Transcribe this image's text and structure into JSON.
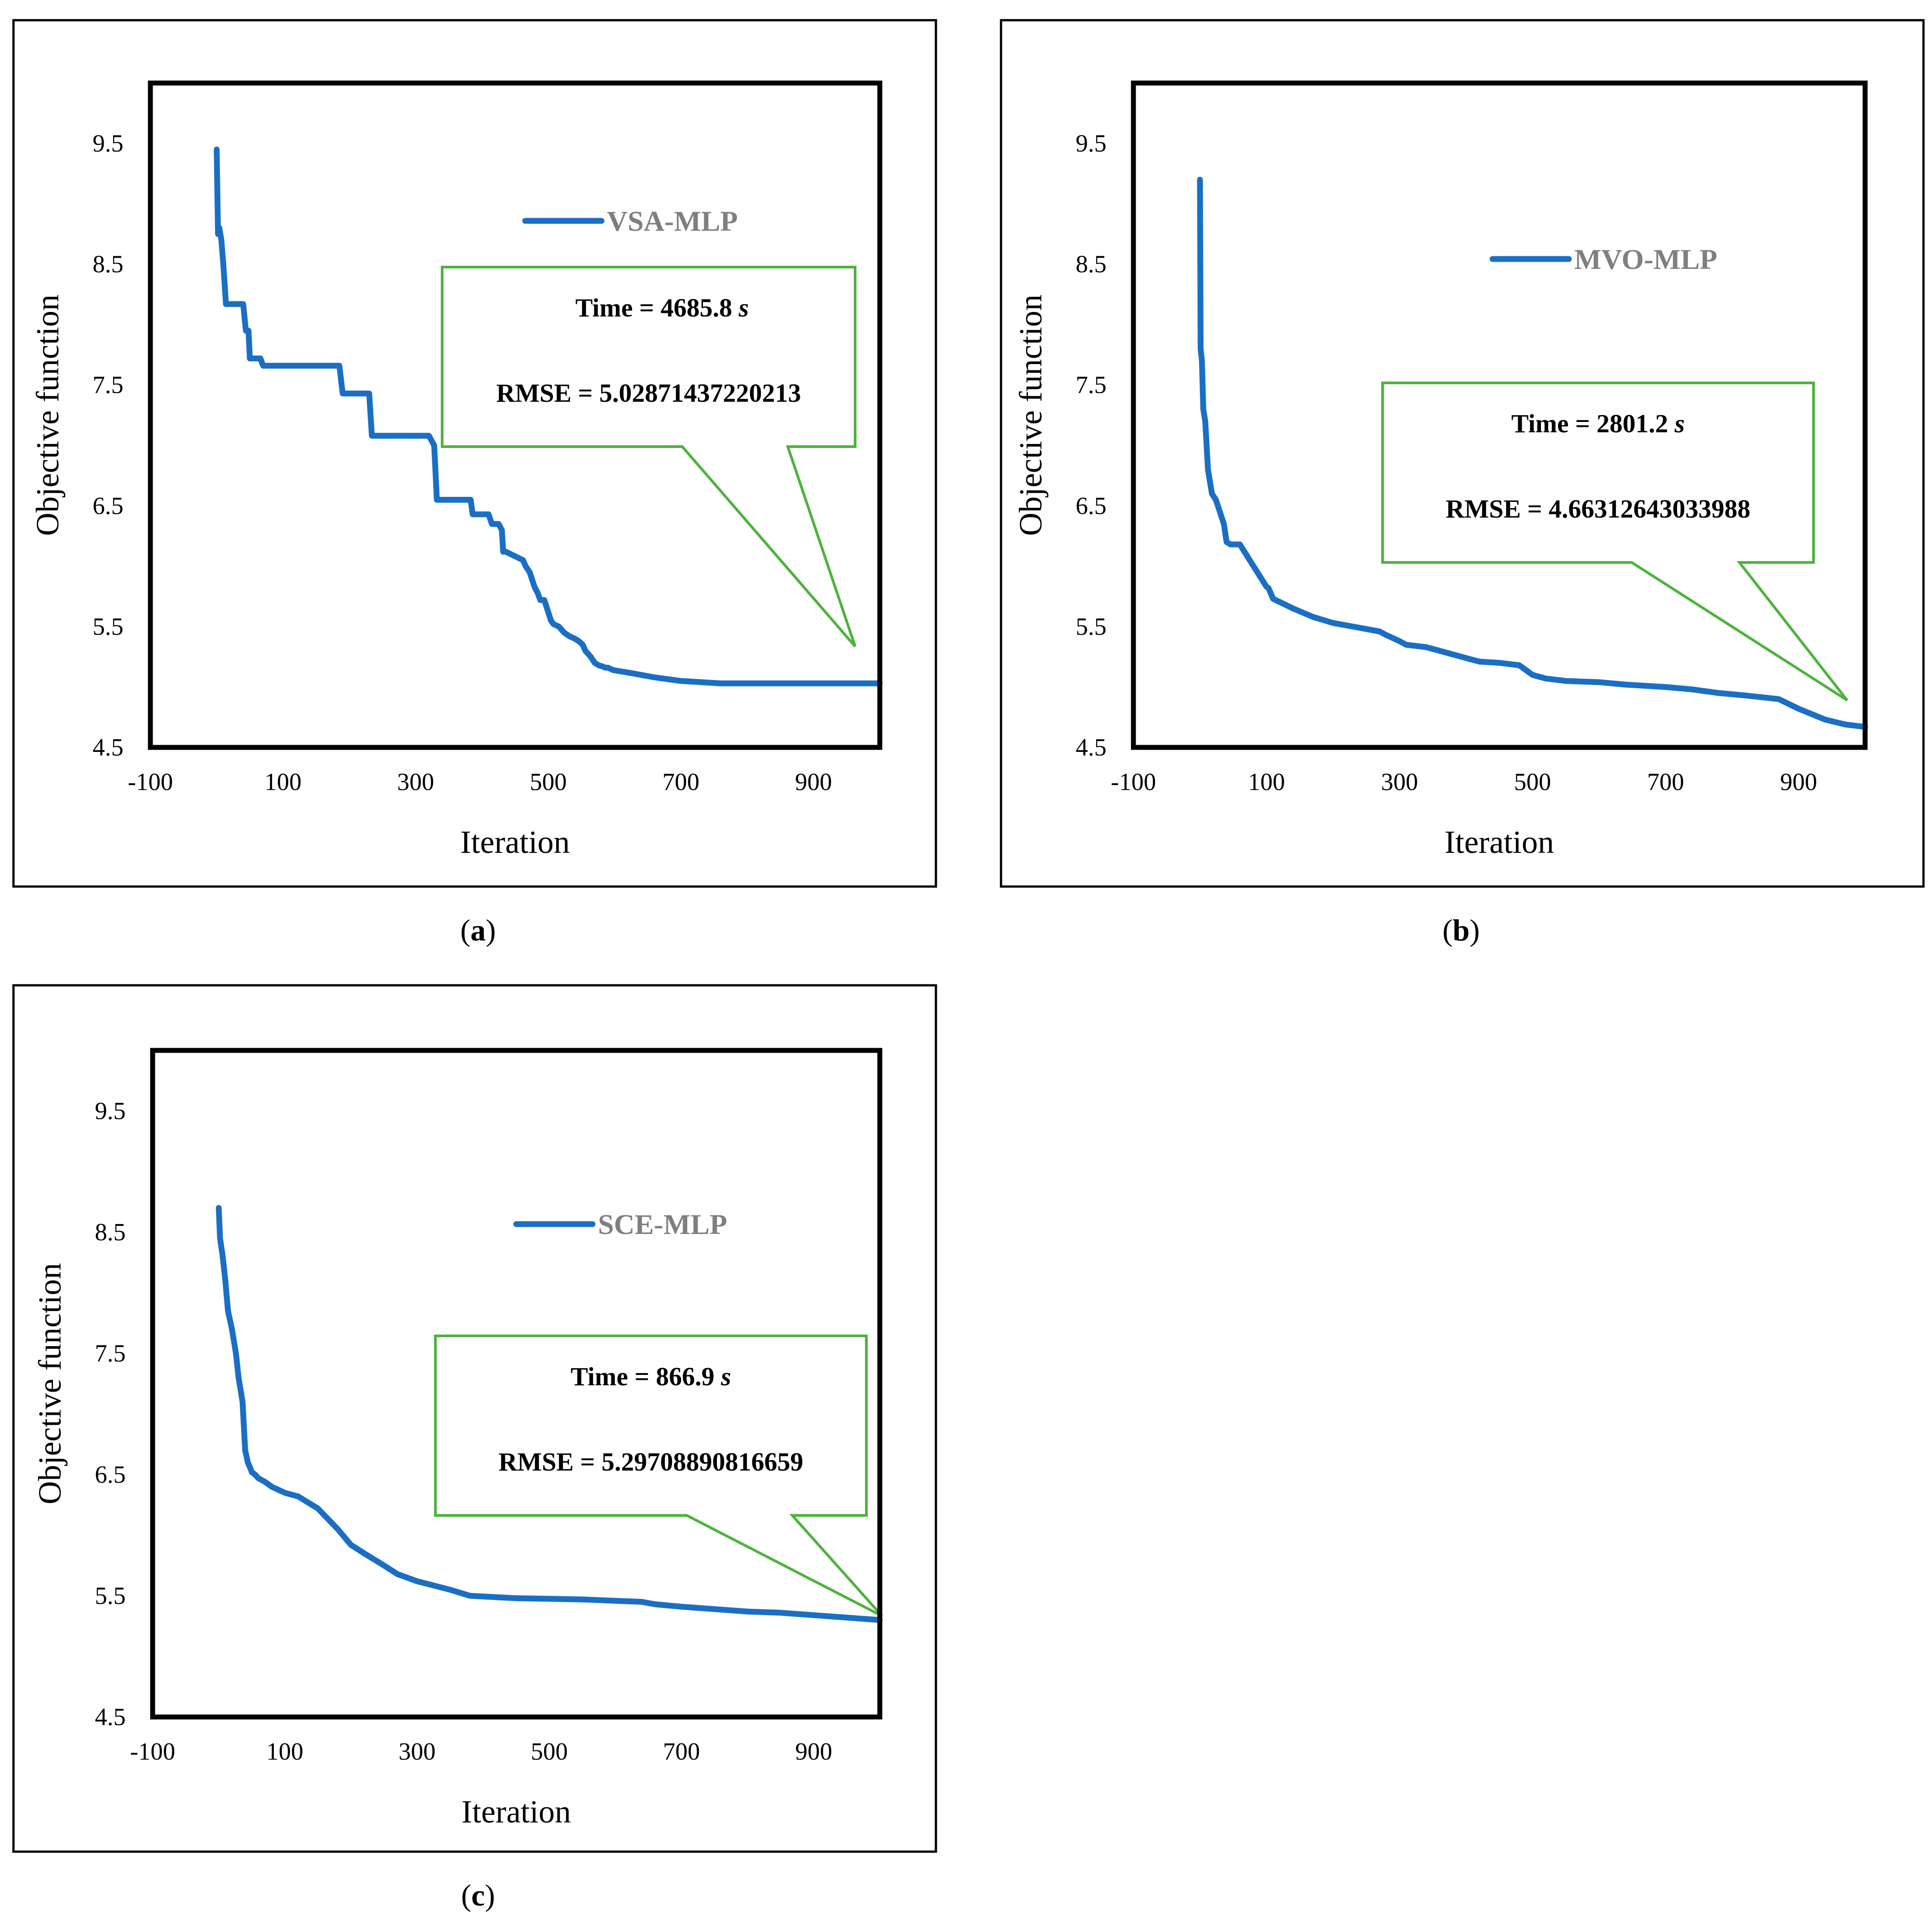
{
  "chart_data": [
    {
      "type": "line",
      "panel_label": "a",
      "series": [
        {
          "name": "VSA-MLP",
          "x": [
            0,
            2,
            4,
            7,
            10,
            14,
            40,
            44,
            48,
            50,
            66,
            70,
            185,
            190,
            230,
            234,
            320,
            328,
            332,
            336,
            383,
            386,
            410,
            415,
            425,
            430,
            432,
            436,
            462,
            466,
            472,
            478,
            480,
            484,
            488,
            494,
            500,
            504,
            508,
            516,
            524,
            532,
            540,
            546,
            552,
            556,
            564,
            570,
            576,
            582,
            586,
            590,
            594,
            598,
            620,
            660,
            700,
            760,
            1000
          ],
          "values": [
            9.45,
            8.75,
            8.8,
            8.7,
            8.5,
            8.17,
            8.17,
            7.95,
            7.95,
            7.72,
            7.72,
            7.66,
            7.66,
            7.43,
            7.43,
            7.08,
            7.08,
            7.0,
            6.55,
            6.55,
            6.55,
            6.43,
            6.43,
            6.35,
            6.35,
            6.3,
            6.12,
            6.12,
            6.05,
            6.0,
            5.95,
            5.85,
            5.82,
            5.78,
            5.72,
            5.72,
            5.62,
            5.55,
            5.52,
            5.5,
            5.45,
            5.42,
            5.4,
            5.38,
            5.35,
            5.3,
            5.25,
            5.2,
            5.18,
            5.17,
            5.16,
            5.16,
            5.15,
            5.14,
            5.12,
            5.08,
            5.05,
            5.03,
            5.03
          ]
        }
      ],
      "annotation": {
        "time_label": "Time = 4685.8",
        "time_unit": "s",
        "rmse_label": "RMSE = 5.02871437220213"
      },
      "xlabel": "Iteration",
      "ylabel": "Objective function",
      "xlim": [
        -100,
        1000
      ],
      "ylim": [
        4.5,
        10
      ],
      "x_ticks": [
        "-100",
        "100",
        "300",
        "500",
        "700",
        "900"
      ],
      "y_ticks": [
        "4.5",
        "5.5",
        "6.5",
        "7.5",
        "8.5",
        "9.5"
      ]
    },
    {
      "type": "line",
      "panel_label": "b",
      "series": [
        {
          "name": "MVO-MLP",
          "x": [
            0,
            1,
            3,
            5,
            8,
            12,
            18,
            24,
            30,
            36,
            40,
            46,
            50,
            60,
            100,
            103,
            110,
            140,
            170,
            200,
            230,
            270,
            280,
            300,
            310,
            340,
            360,
            380,
            400,
            420,
            450,
            480,
            500,
            520,
            550,
            600,
            640,
            700,
            740,
            780,
            820,
            870,
            900,
            940,
            970,
            1000
          ],
          "values": [
            9.2,
            7.8,
            7.7,
            7.3,
            7.2,
            6.8,
            6.6,
            6.55,
            6.45,
            6.35,
            6.2,
            6.18,
            6.18,
            6.18,
            5.83,
            5.82,
            5.73,
            5.65,
            5.58,
            5.53,
            5.5,
            5.46,
            5.43,
            5.38,
            5.35,
            5.33,
            5.3,
            5.27,
            5.24,
            5.21,
            5.2,
            5.18,
            5.1,
            5.07,
            5.05,
            5.04,
            5.02,
            5.0,
            4.98,
            4.95,
            4.93,
            4.9,
            4.82,
            4.73,
            4.69,
            4.67
          ]
        }
      ],
      "annotation": {
        "time_label": "Time = 2801.2",
        "time_unit": "s",
        "rmse_label": "RMSE = 4.66312643033988"
      },
      "xlabel": "Iteration",
      "ylabel": "Objective function",
      "xlim": [
        -100,
        1000
      ],
      "ylim": [
        4.5,
        10
      ],
      "x_ticks": [
        "-100",
        "100",
        "300",
        "500",
        "700",
        "900"
      ],
      "y_ticks": [
        "4.5",
        "5.5",
        "6.5",
        "7.5",
        "8.5",
        "9.5"
      ]
    },
    {
      "type": "line",
      "panel_label": "c",
      "series": [
        {
          "name": "SCE-MLP",
          "x": [
            0,
            2,
            6,
            10,
            14,
            20,
            26,
            30,
            36,
            40,
            44,
            48,
            50,
            55,
            60,
            70,
            80,
            100,
            120,
            150,
            180,
            200,
            220,
            250,
            270,
            300,
            350,
            380,
            450,
            550,
            640,
            660,
            700,
            800,
            850,
            900,
            1000
          ],
          "values": [
            8.7,
            8.45,
            8.3,
            8.1,
            7.85,
            7.7,
            7.5,
            7.3,
            7.1,
            6.7,
            6.6,
            6.55,
            6.52,
            6.5,
            6.47,
            6.44,
            6.4,
            6.35,
            6.32,
            6.22,
            6.05,
            5.92,
            5.85,
            5.75,
            5.68,
            5.62,
            5.55,
            5.5,
            5.48,
            5.47,
            5.45,
            5.43,
            5.41,
            5.37,
            5.36,
            5.34,
            5.3
          ]
        }
      ],
      "annotation": {
        "time_label": "Time = 866.9",
        "time_unit": "s",
        "rmse_label": "RMSE = 5.29708890816659"
      },
      "xlabel": "Iteration",
      "ylabel": "Objective function",
      "xlim": [
        -100,
        1000
      ],
      "ylim": [
        4.5,
        10
      ],
      "x_ticks": [
        "-100",
        "100",
        "300",
        "500",
        "700",
        "900"
      ],
      "y_ticks": [
        "4.5",
        "5.5",
        "6.5",
        "7.5",
        "8.5",
        "9.5"
      ]
    }
  ],
  "colors": {
    "series": "#1a6fc4",
    "callout_border": "#4db33d",
    "legend_text": "#7f7f7f",
    "frame": "#000000"
  }
}
